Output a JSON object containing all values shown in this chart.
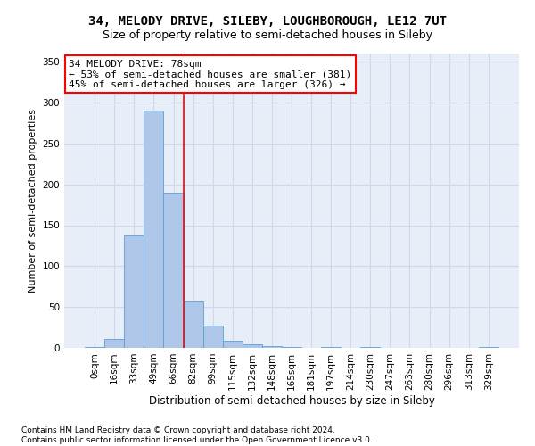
{
  "title": "34, MELODY DRIVE, SILEBY, LOUGHBOROUGH, LE12 7UT",
  "subtitle": "Size of property relative to semi-detached houses in Sileby",
  "xlabel": "Distribution of semi-detached houses by size in Sileby",
  "ylabel": "Number of semi-detached properties",
  "footer_line1": "Contains HM Land Registry data © Crown copyright and database right 2024.",
  "footer_line2": "Contains public sector information licensed under the Open Government Licence v3.0.",
  "bar_labels": [
    "0sqm",
    "16sqm",
    "33sqm",
    "49sqm",
    "66sqm",
    "82sqm",
    "99sqm",
    "115sqm",
    "132sqm",
    "148sqm",
    "165sqm",
    "181sqm",
    "197sqm",
    "214sqm",
    "230sqm",
    "247sqm",
    "263sqm",
    "280sqm",
    "296sqm",
    "313sqm",
    "329sqm"
  ],
  "bar_values": [
    1,
    11,
    138,
    290,
    190,
    57,
    27,
    9,
    4,
    2,
    1,
    0,
    1,
    0,
    1,
    0,
    0,
    0,
    0,
    0,
    1
  ],
  "bar_color": "#aec6e8",
  "bar_edge_color": "#5a9fd4",
  "grid_color": "#d0d8e8",
  "background_color": "#e8eef8",
  "annotation_line1": "34 MELODY DRIVE: 78sqm",
  "annotation_line2": "← 53% of semi-detached houses are smaller (381)",
  "annotation_line3": "45% of semi-detached houses are larger (326) →",
  "annotation_box_edge_color": "red",
  "property_line_x": 4.5,
  "ylim": [
    0,
    360
  ],
  "yticks": [
    0,
    50,
    100,
    150,
    200,
    250,
    300,
    350
  ],
  "title_fontsize": 10,
  "subtitle_fontsize": 9,
  "ylabel_fontsize": 8,
  "xlabel_fontsize": 8.5,
  "annotation_fontsize": 8,
  "footer_fontsize": 6.5,
  "tick_fontsize": 7.5
}
